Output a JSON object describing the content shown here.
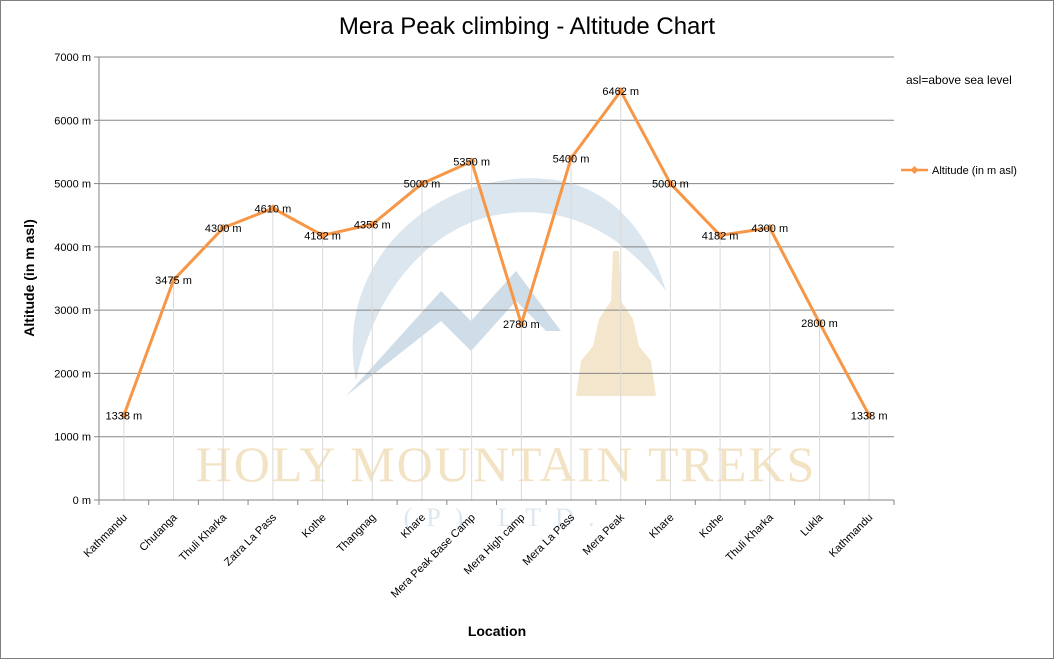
{
  "chart_data": {
    "type": "line",
    "title": "Mera Peak climbing - Altitude Chart",
    "xlabel": "Location",
    "ylabel": "Altitude (in m asl)",
    "ylim": [
      0,
      7000
    ],
    "yticks": [
      "0 m",
      "1000 m",
      "2000 m",
      "3000 m",
      "4000 m",
      "5000 m",
      "6000 m",
      "7000 m"
    ],
    "categories": [
      "Kathmandu",
      "Chutanga",
      "Thuli Kharka",
      "Zatra La Pass",
      "Kothe",
      "Thangnag",
      "Khare",
      "Mera Peak Base Camp",
      "Mera High camp",
      "Mera La Pass",
      "Mera Peak",
      "Khare",
      "Kothe",
      "Thuli Kharka",
      "Lukla",
      "Kathmandu"
    ],
    "series": [
      {
        "name": "Altitude (in  m asl)",
        "values": [
          1338,
          3475,
          4300,
          4610,
          4182,
          4356,
          5000,
          5350,
          2780,
          5400,
          6462,
          5000,
          4182,
          4300,
          2800,
          1338
        ],
        "labels": [
          "1338 m",
          "3475 m",
          "4300 m",
          "4610 m",
          "4182 m",
          "4356 m",
          "5000 m",
          "5350 m",
          "2780 m",
          "5400 m",
          "6462 m",
          "5000 m",
          "4182 m",
          "4300 m",
          "2800 m",
          "1338 m"
        ],
        "color": "#f79646"
      }
    ],
    "grid": true,
    "legend_position": "right",
    "annotation": "asl=above sea level"
  },
  "watermark": {
    "text": "HOLY MOUNTAIN TREKS",
    "subtext": "(P) LTD.",
    "text_color": "#f3e3c5",
    "logo_color": "#d7e3ec"
  },
  "colors": {
    "gridline": "#868686",
    "vgrid": "#d9d9d9",
    "axis": "#868686",
    "line": "#f79646"
  }
}
